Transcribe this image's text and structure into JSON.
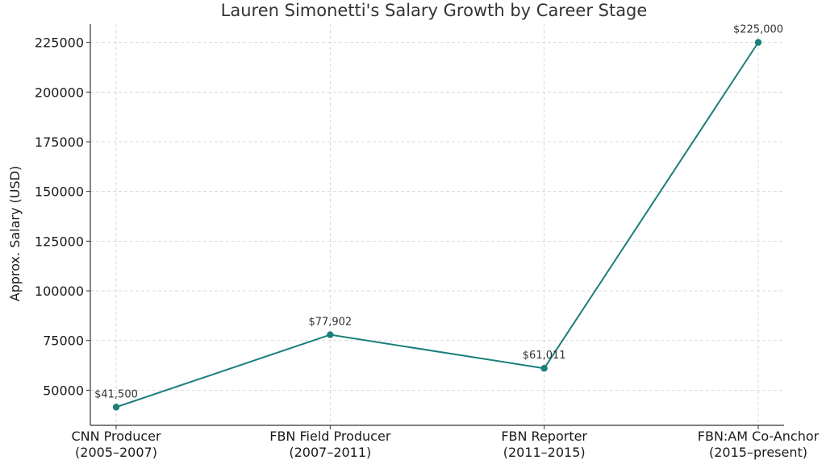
{
  "chart_data": {
    "type": "line",
    "title": "Lauren Simonetti's Salary Growth by Career Stage",
    "xlabel": "",
    "ylabel": "Approx. Salary (USD)",
    "categories": [
      [
        "CNN Producer",
        "(2005–2007)"
      ],
      [
        "FBN Field Producer",
        "(2007–2011)"
      ],
      [
        "FBN Reporter",
        "(2011–2015)"
      ],
      [
        "FBN:AM Co-Anchor",
        "(2015–present)"
      ]
    ],
    "values": [
      41500,
      77902,
      61011,
      225000
    ],
    "data_labels": [
      "$41,500",
      "$77,902",
      "$61,011",
      "$225,000"
    ],
    "ylim": [
      32328,
      234172
    ],
    "yticks": [
      50000,
      75000,
      100000,
      125000,
      150000,
      175000,
      200000,
      225000
    ],
    "ytick_labels": [
      "50000",
      "75000",
      "100000",
      "125000",
      "150000",
      "175000",
      "200000",
      "225000"
    ],
    "grid": true,
    "line_color": "#1b7f7a"
  }
}
